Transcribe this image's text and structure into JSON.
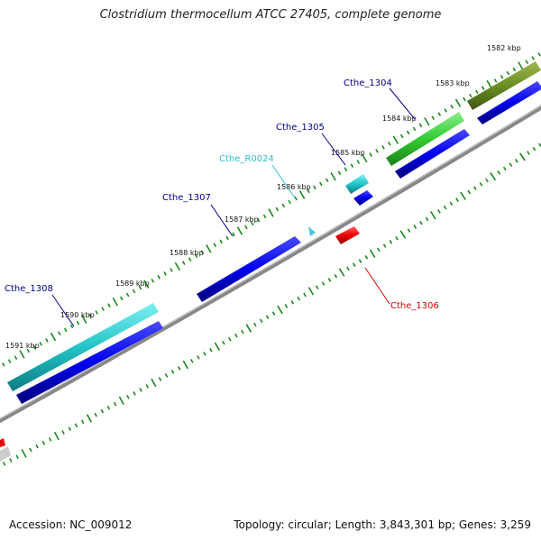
{
  "title": "Clostridium thermocellum ATCC 27405, complete genome",
  "footer": {
    "accession": "Accession: NC_009012",
    "summary": "Topology: circular; Length: 3,843,301 bp; Genes: 3,259"
  },
  "ticks": [
    {
      "label": "1582 kbp"
    },
    {
      "label": "1583 kbp"
    },
    {
      "label": "1584 kbp"
    },
    {
      "label": "1585 kbp"
    },
    {
      "label": "1586 kbp"
    },
    {
      "label": "1587 kbp"
    },
    {
      "label": "1588 kbp"
    },
    {
      "label": "1589 kbp"
    },
    {
      "label": "1590 kbp"
    },
    {
      "label": "1591 kbp"
    }
  ],
  "genes": [
    {
      "name": "Cthe_1304",
      "color": "#00008b"
    },
    {
      "name": "Cthe_1305",
      "color": "#00008b"
    },
    {
      "name": "Cthe_R0024",
      "color": "#33bbcc"
    },
    {
      "name": "Cthe_1307",
      "color": "#00008b"
    },
    {
      "name": "Cthe_1308",
      "color": "#00008b"
    },
    {
      "name": "Cthe_1306",
      "color": "#dd0000"
    }
  ],
  "colors": {
    "cds": "#0000dd",
    "gene_cyan": "#22c4c8",
    "gene_green": "#33cc33",
    "gene_olive": "#6b8e23",
    "gene_forward_red": "#ee0000",
    "backbone": "#888888",
    "ticks": "#1a8a1a"
  }
}
